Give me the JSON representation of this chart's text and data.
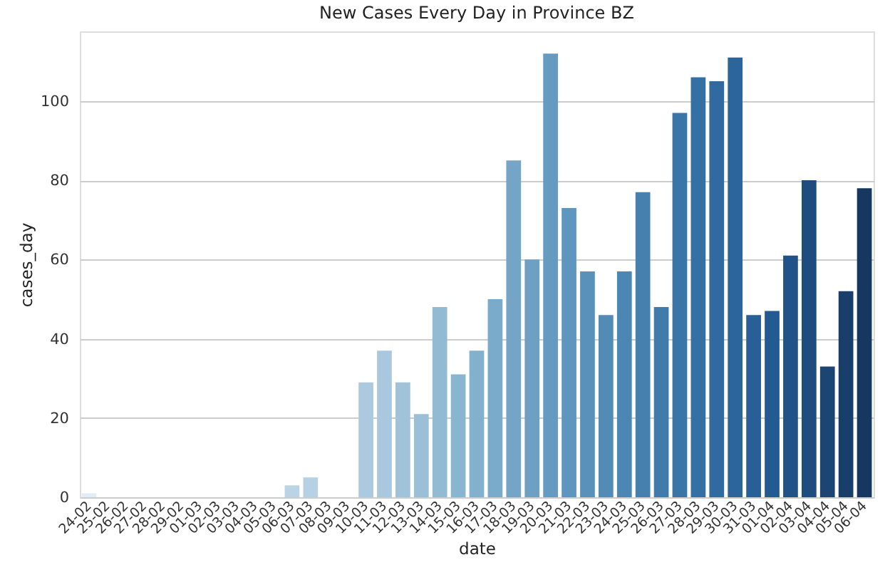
{
  "chart_data": {
    "type": "bar",
    "title": "New Cases Every Day in Province BZ",
    "xlabel": "date",
    "ylabel": "cases_day",
    "categories": [
      "24-02",
      "25-02",
      "26-02",
      "27-02",
      "28-02",
      "29-02",
      "01-03",
      "02-03",
      "03-03",
      "04-03",
      "05-03",
      "06-03",
      "07-03",
      "08-03",
      "09-03",
      "10-03",
      "11-03",
      "12-03",
      "13-03",
      "14-03",
      "15-03",
      "16-03",
      "17-03",
      "18-03",
      "19-03",
      "20-03",
      "21-03",
      "22-03",
      "23-03",
      "24-03",
      "25-03",
      "26-03",
      "27-03",
      "28-03",
      "29-03",
      "30-03",
      "31-03",
      "01-04",
      "02-04",
      "03-04",
      "04-04",
      "05-04",
      "06-04"
    ],
    "values": [
      1,
      0,
      0,
      0,
      0,
      0,
      0,
      0,
      0,
      0,
      0,
      3,
      5,
      0,
      0,
      29,
      37,
      29,
      21,
      48,
      31,
      37,
      50,
      85,
      60,
      112,
      73,
      57,
      46,
      57,
      77,
      48,
      97,
      106,
      105,
      111,
      46,
      47,
      61,
      80,
      33,
      52,
      78
    ],
    "colors": [
      "#e1ecf7",
      "#ddeaf5",
      "#dae7f4",
      "#d6e5f2",
      "#d3e3f1",
      "#cfe1ef",
      "#ccdeed",
      "#c8dcec",
      "#c5daea",
      "#c1d8e9",
      "#bed5e7",
      "#bad3e5",
      "#b7d1e4",
      "#b3cfe2",
      "#b0cce0",
      "#accadf",
      "#a9c8dd",
      "#a1c3da",
      "#9abfd6",
      "#92bad3",
      "#8ab5d0",
      "#83b0cd",
      "#7babca",
      "#74a5c6",
      "#6da0c3",
      "#659bc0",
      "#5e96bd",
      "#5891b9",
      "#528bb6",
      "#4c86b2",
      "#4680af",
      "#407bab",
      "#3a75a8",
      "#3470a4",
      "#306aa0",
      "#2c659b",
      "#285f97",
      "#245a92",
      "#215388",
      "#1e4c7e",
      "#1c4573",
      "#193e69",
      "#16375f"
    ],
    "ylim": [
      0,
      117.6
    ],
    "yticks": [
      0,
      20,
      40,
      60,
      80,
      100
    ],
    "grid": "y"
  }
}
